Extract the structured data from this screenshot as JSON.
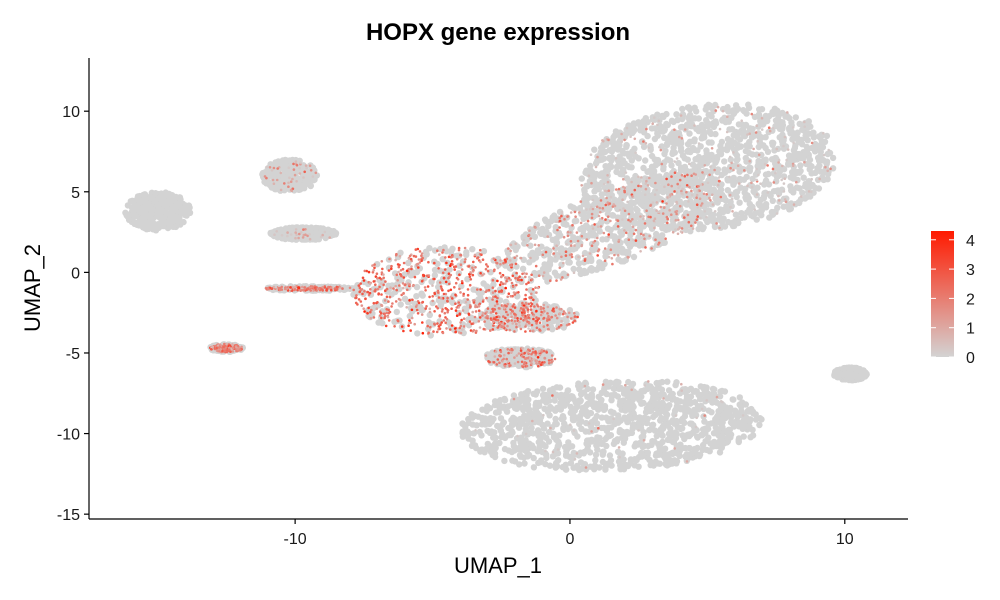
{
  "chart_data": {
    "type": "scatter",
    "title": "HOPX gene expression",
    "xlabel": "UMAP_1",
    "ylabel": "UMAP_2",
    "xlim": [
      -17.5,
      12.3
    ],
    "ylim": [
      -15.3,
      13.3
    ],
    "x_ticks": [
      -10,
      0,
      10
    ],
    "y_ticks": [
      -15,
      -10,
      -5,
      0,
      5,
      10
    ],
    "grid": false,
    "legend": {
      "placement": "right",
      "type": "continuous color scale",
      "ticks": [
        0,
        1,
        2,
        3,
        4
      ],
      "min": 0,
      "max": 4.3,
      "low_color": "#d3d3d3",
      "high_color": "#ff1a00"
    },
    "clusters": [
      {
        "cx": 5.0,
        "cy": 6.5,
        "rx": 4.8,
        "ry": 3.8,
        "rot": 22,
        "density": 0.14,
        "expr_mean": 0.5
      },
      {
        "cx": 1.5,
        "cy": 2.8,
        "rx": 5.0,
        "ry": 2.0,
        "rot": 38,
        "density": 0.35,
        "expr_mean": 1.5
      },
      {
        "cx": -4.5,
        "cy": -1.2,
        "rx": 3.4,
        "ry": 2.8,
        "rot": 0,
        "density": 0.7,
        "expr_mean": 2.3
      },
      {
        "cx": -1.5,
        "cy": -2.8,
        "rx": 1.8,
        "ry": 0.9,
        "rot": 0,
        "density": 0.55,
        "expr_mean": 2.0
      },
      {
        "cx": 1.5,
        "cy": -9.5,
        "rx": 5.5,
        "ry": 2.8,
        "rot": 5,
        "density": 0.04,
        "expr_mean": 0.4
      },
      {
        "cx": -1.8,
        "cy": -5.3,
        "rx": 1.3,
        "ry": 0.6,
        "rot": 0,
        "density": 0.4,
        "expr_mean": 1.8
      },
      {
        "cx": -15.0,
        "cy": 3.8,
        "rx": 1.2,
        "ry": 1.2,
        "rot": 0,
        "density": 0.0,
        "expr_mean": 0.0
      },
      {
        "cx": -10.2,
        "cy": 6.0,
        "rx": 1.0,
        "ry": 1.0,
        "rot": 0,
        "density": 0.15,
        "expr_mean": 1.0
      },
      {
        "cx": -9.7,
        "cy": 2.4,
        "rx": 1.2,
        "ry": 0.4,
        "rot": 0,
        "density": 0.05,
        "expr_mean": 0.6
      },
      {
        "cx": -9.5,
        "cy": -1.0,
        "rx": 1.6,
        "ry": 0.15,
        "rot": 0,
        "density": 0.5,
        "expr_mean": 1.8
      },
      {
        "cx": 10.2,
        "cy": -6.3,
        "rx": 0.6,
        "ry": 0.4,
        "rot": 0,
        "density": 0.0,
        "expr_mean": 0.0
      },
      {
        "cx": -12.5,
        "cy": -4.7,
        "rx": 0.6,
        "ry": 0.25,
        "rot": 0,
        "density": 0.6,
        "expr_mean": 1.8
      }
    ]
  }
}
